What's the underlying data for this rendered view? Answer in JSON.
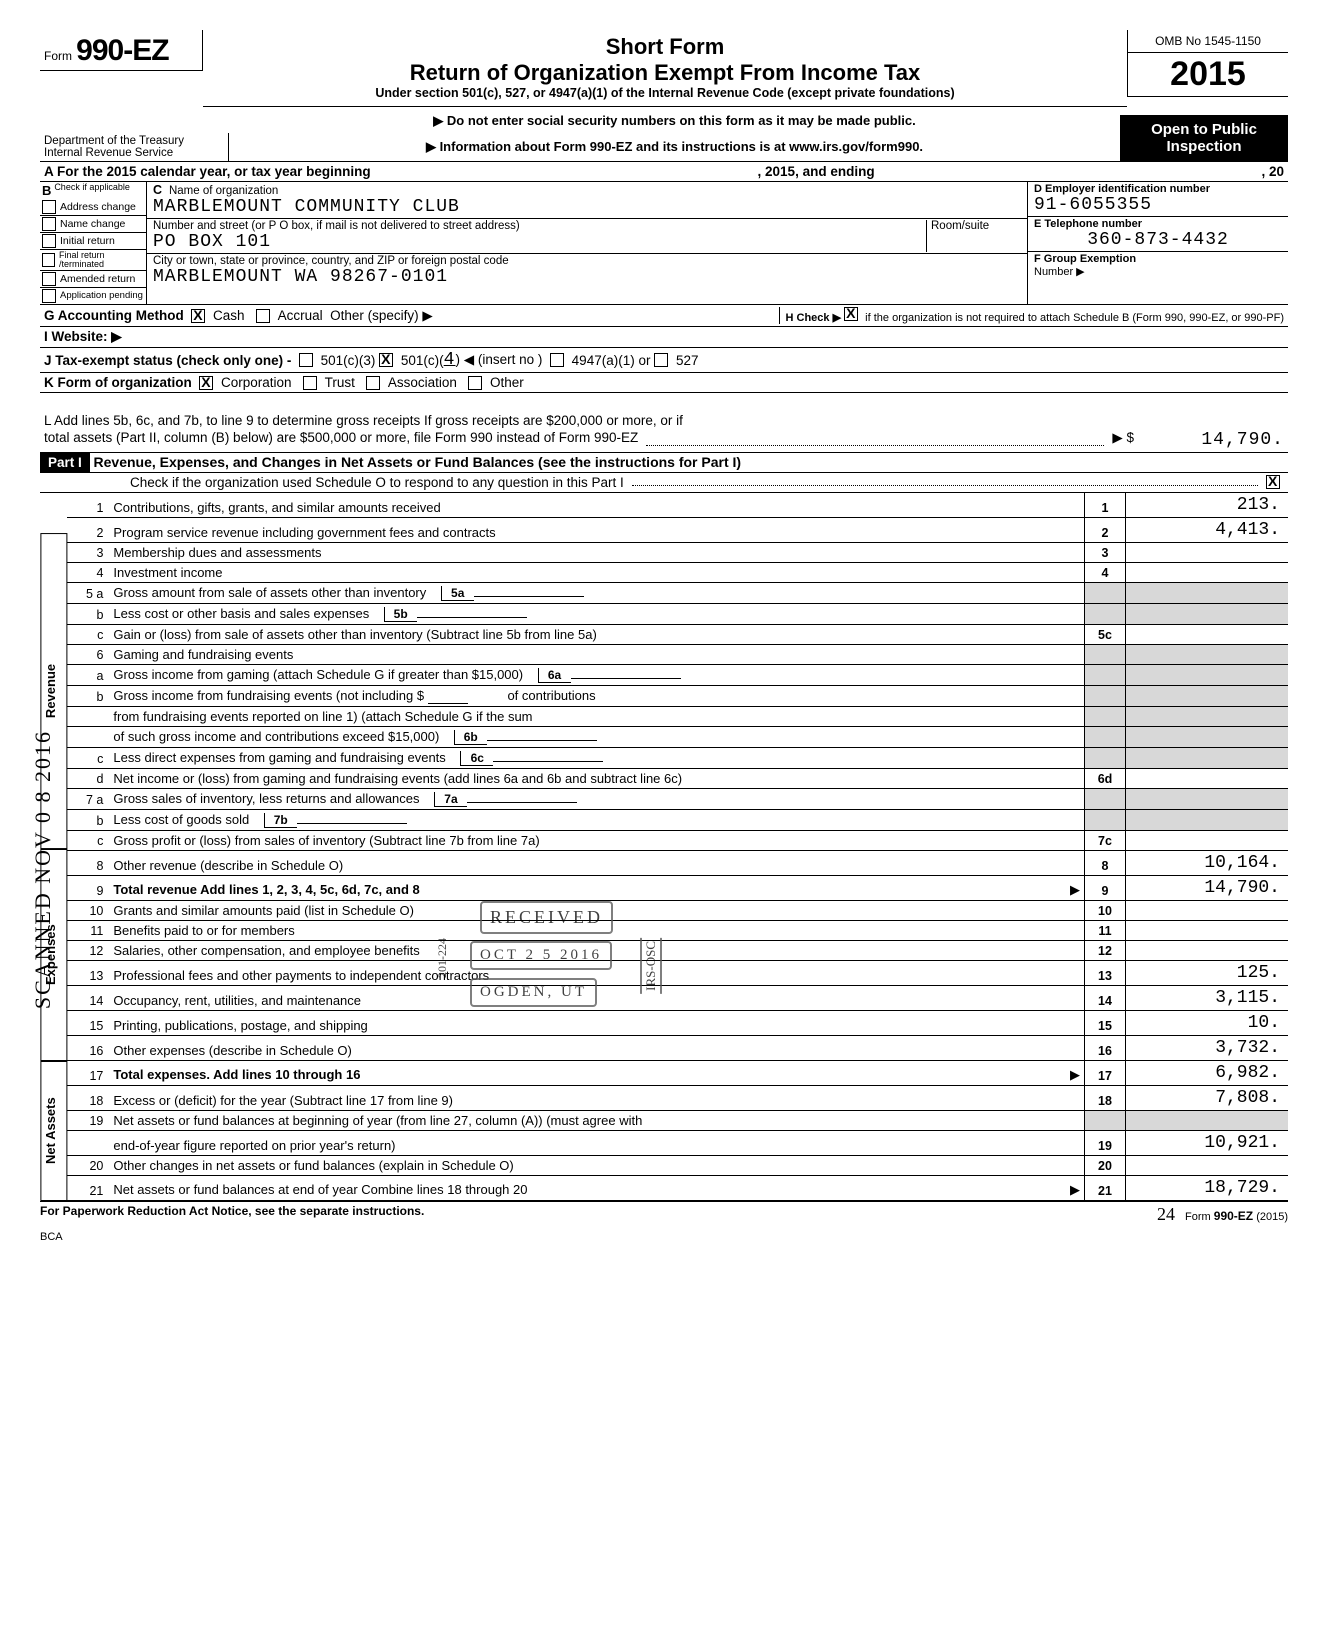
{
  "form": {
    "prefix": "Form",
    "number": "990-EZ",
    "short": "Short Form",
    "title": "Return of Organization Exempt From Income Tax",
    "subtitle": "Under section 501(c), 527, or 4947(a)(1) of the Internal Revenue Code (except private foundations)",
    "warn": "▶ Do not enter social security numbers on this form as it may be made public.",
    "info": "▶ Information about Form 990-EZ and its instructions is at  www.irs.gov/form990.",
    "dept1": "Department of the Treasury",
    "dept2": "Internal Revenue Service",
    "omb": "OMB No  1545-1150",
    "year": "2015",
    "pub1": "Open to Public",
    "pub2": "Inspection"
  },
  "hdr": {
    "a": "A  For the 2015 calendar year, or tax year beginning",
    "a2": ", 2015, and ending",
    "a3": ", 20",
    "b": "B",
    "b_lbl": "Check if applicable",
    "checks": [
      "Address change",
      "Name change",
      "Initial return",
      "Final return /terminated",
      "Amended return",
      "Application pending"
    ],
    "c": "C",
    "c_lbl": "Name of organization",
    "org": "MARBLEMOUNT COMMUNITY CLUB",
    "addr_lbl": "Number and street (or P O  box, if mail is not delivered to street address)",
    "room": "Room/suite",
    "addr": "PO BOX 101",
    "city_lbl": "City or town, state or province, country, and ZIP or foreign postal code",
    "city": "MARBLEMOUNT  WA 98267-0101",
    "d": "D Employer identification number",
    "ein": "91-6055355",
    "e": "E Telephone number",
    "phone": "360-873-4432",
    "f": "F Group Exemption",
    "f2": "Number ▶",
    "g": "G Accounting Method",
    "g_cash": "Cash",
    "g_acc": "Accrual",
    "g_oth": "Other (specify)  ▶",
    "h": "H Check ▶",
    "h2": "if the organization is not required to attach Schedule B (Form 990, 990-EZ, or 990-PF)",
    "i": "I   Website:  ▶",
    "j": "J Tax-exempt status (check only one) -",
    "j1": "501(c)(3)",
    "j2": "501(c)(",
    "j2n": "4",
    "j3": ")  ◀ (insert no )",
    "j4": "4947(a)(1) or",
    "j5": "527",
    "k": "K Form of organization",
    "k1": "Corporation",
    "k2": "Trust",
    "k3": "Association",
    "k4": "Other",
    "l1": "L Add lines 5b, 6c, and 7b, to line 9 to determine gross receipts  If gross receipts are $200,000 or more, or if",
    "l2": "total assets (Part II, column (B) below) are $500,000 or more, file Form 990 instead of Form 990-EZ",
    "l_amt": "14,790.",
    "l_sym": "▶  $"
  },
  "part1": {
    "bar": "Part I",
    "title": "Revenue, Expenses, and Changes in Net Assets or Fund Balances (see the instructions for Part I)",
    "check_line": "Check if the organization used Schedule O to respond to any question in this Part I"
  },
  "side": {
    "scanned": "SCANNED NOV 0 8 2016",
    "rev": "Revenue",
    "exp": "Expenses",
    "net": "Net Assets"
  },
  "rows": [
    {
      "n": "1",
      "t": "Contributions, gifts, grants, and similar amounts received",
      "box": "1",
      "amt": "213."
    },
    {
      "n": "2",
      "t": "Program service revenue including government fees and contracts",
      "box": "2",
      "amt": "4,413."
    },
    {
      "n": "3",
      "t": "Membership dues and assessments",
      "box": "3",
      "amt": ""
    },
    {
      "n": "4",
      "t": "Investment income",
      "box": "4",
      "amt": ""
    },
    {
      "n": "5 a",
      "t": "Gross amount from sale of assets other than inventory",
      "sub": "5a"
    },
    {
      "n": "b",
      "t": "Less  cost or other basis and sales expenses",
      "sub": "5b"
    },
    {
      "n": "c",
      "t": "Gain or (loss) from sale of assets other than inventory (Subtract line 5b from line 5a)",
      "box": "5c",
      "amt": ""
    },
    {
      "n": "6",
      "t": "Gaming and fundraising events"
    },
    {
      "n": "a",
      "t": "Gross income from gaming (attach Schedule G if greater than $15,000)",
      "sub": "6a"
    },
    {
      "n": "b",
      "t": "Gross income from fundraising events (not including $",
      "tail": "of contributions"
    },
    {
      "n": "",
      "t": "from fundraising events reported on line 1) (attach Schedule G if the sum"
    },
    {
      "n": "",
      "t": "of such gross income and contributions exceed $15,000)",
      "sub": "6b"
    },
    {
      "n": "c",
      "t": "Less  direct expenses from gaming and fundraising events",
      "sub": "6c"
    },
    {
      "n": "d",
      "t": "Net income or (loss) from gaming and fundraising events (add lines 6a and 6b and subtract line 6c)",
      "box": "6d",
      "amt": ""
    },
    {
      "n": "7 a",
      "t": "Gross sales of inventory, less returns and allowances",
      "sub": "7a"
    },
    {
      "n": "b",
      "t": "Less  cost of goods sold",
      "sub": "7b"
    },
    {
      "n": "c",
      "t": "Gross profit or (loss) from sales of inventory (Subtract line 7b from line 7a)",
      "box": "7c",
      "amt": ""
    },
    {
      "n": "8",
      "t": "Other revenue (describe in Schedule O)",
      "box": "8",
      "amt": "10,164."
    },
    {
      "n": "9",
      "t": "Total revenue   Add lines 1, 2, 3, 4, 5c, 6d, 7c, and 8",
      "box": "9",
      "amt": "14,790.",
      "bold": true,
      "arrow": true
    },
    {
      "n": "10",
      "t": "Grants and similar amounts paid (list in Schedule O)",
      "box": "10",
      "amt": ""
    },
    {
      "n": "11",
      "t": "Benefits paid to or for members",
      "box": "11",
      "amt": ""
    },
    {
      "n": "12",
      "t": "Salaries, other compensation, and employee benefits",
      "box": "12",
      "amt": ""
    },
    {
      "n": "13",
      "t": "Professional fees and other payments to independent contractors",
      "box": "13",
      "amt": "125."
    },
    {
      "n": "14",
      "t": "Occupancy, rent, utilities, and maintenance",
      "box": "14",
      "amt": "3,115."
    },
    {
      "n": "15",
      "t": "Printing, publications, postage, and shipping",
      "box": "15",
      "amt": "10."
    },
    {
      "n": "16",
      "t": "Other expenses (describe in Schedule O)",
      "box": "16",
      "amt": "3,732."
    },
    {
      "n": "17",
      "t": "Total expenses.  Add lines 10 through 16",
      "box": "17",
      "amt": "6,982.",
      "bold": true,
      "arrow": true
    },
    {
      "n": "18",
      "t": "Excess or (deficit) for the year (Subtract line 17 from line 9)",
      "box": "18",
      "amt": "7,808."
    },
    {
      "n": "19",
      "t": "Net assets or fund balances at beginning of year (from line 27, column (A)) (must agree with"
    },
    {
      "n": "",
      "t": "end-of-year figure reported on prior year's return)",
      "box": "19",
      "amt": "10,921."
    },
    {
      "n": "20",
      "t": "Other changes in net assets or fund balances (explain in Schedule O)",
      "box": "20",
      "amt": ""
    },
    {
      "n": "21",
      "t": "Net assets or fund balances at end of year  Combine lines 18 through 20",
      "box": "21",
      "amt": "18,729.",
      "arrow": true
    }
  ],
  "stamps": {
    "received": "RECEIVED",
    "date": "OCT 2 5 2016",
    "ogden": "OGDEN, UT",
    "irs": "IRS-OSC",
    "code": "201-224"
  },
  "footer": {
    "pra": "For Paperwork Reduction Act Notice, see the separate instructions.",
    "bca": "BCA",
    "formno": "Form 990-EZ (2015)",
    "hand": "24"
  }
}
